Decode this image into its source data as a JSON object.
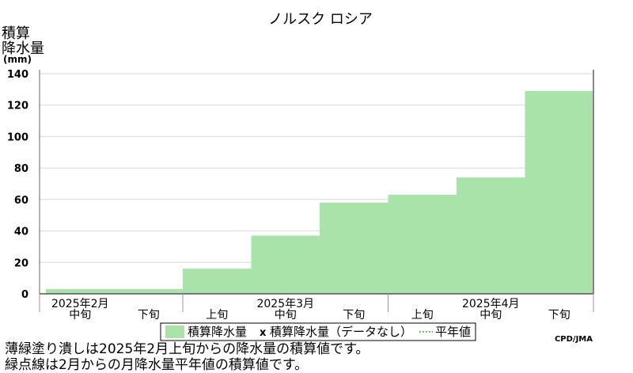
{
  "title": "ノルスク ロシア",
  "ylabel": [
    "積算",
    "降水量",
    "(mm)"
  ],
  "credit": "CPD/JMA",
  "legend": {
    "fill_label": "積算降水量",
    "marker": "x",
    "nodata_label": "積算降水量（データなし）",
    "normal_label": "平年値"
  },
  "notes": [
    "薄緑塗り潰しは2025年2月上旬からの降水量の積算値です。",
    "緑点線は2月からの月降水量平年値の積算値です。"
  ],
  "colors": {
    "fill": "#aae3aa",
    "frame": "#999999",
    "grid": "#d8d8d8"
  },
  "chart_data": {
    "type": "area",
    "subtype": "step",
    "x": [
      "2025年2月中旬",
      "2025年2月下旬",
      "2025年3月上旬",
      "2025年3月中旬",
      "2025年3月下旬",
      "2025年4月上旬",
      "2025年4月中旬",
      "2025年4月下旬"
    ],
    "values": [
      3,
      3,
      16,
      37,
      58,
      63,
      74,
      129
    ],
    "x_ticks_dekad": [
      "中旬",
      "下旬",
      "上旬",
      "中旬",
      "下旬",
      "上旬",
      "中旬",
      "下旬"
    ],
    "x_ticks_month": [
      {
        "label": "2025年2月",
        "at": 0
      },
      {
        "label": "2025年3月",
        "at": 3
      },
      {
        "label": "2025年4月",
        "at": 6
      }
    ],
    "yticks": [
      0,
      20,
      40,
      60,
      80,
      100,
      120,
      140
    ],
    "ylim": [
      0,
      140
    ],
    "grid": true
  }
}
